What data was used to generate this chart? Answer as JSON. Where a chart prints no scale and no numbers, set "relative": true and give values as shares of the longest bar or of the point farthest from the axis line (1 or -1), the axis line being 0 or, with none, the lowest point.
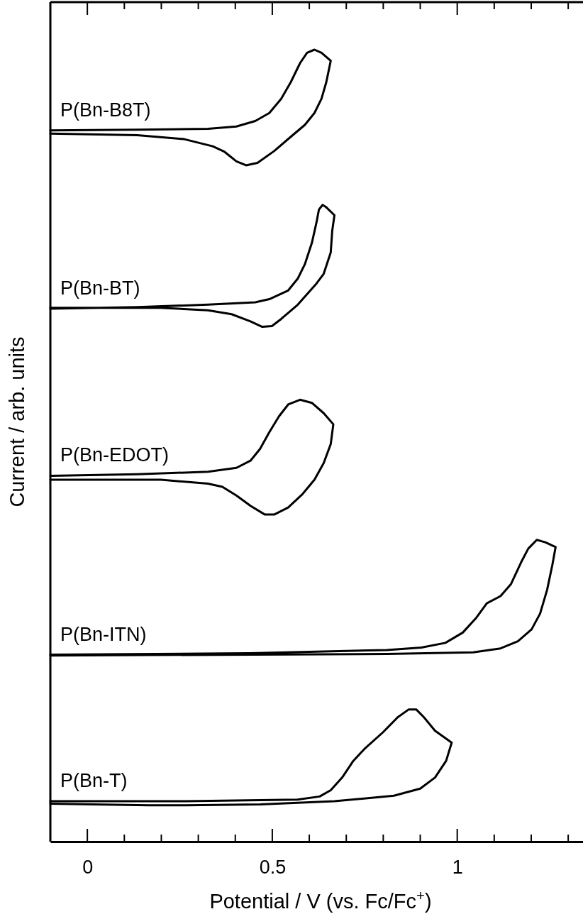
{
  "chart_data": {
    "type": "line",
    "relative": true,
    "xlabel": "Potential / V (vs. Fc/Fc$^{+}$)",
    "ylabel": "Current / arb. units",
    "xlim": [
      -0.1,
      1.34
    ],
    "xticks": [
      0,
      {
        "value": 0.1,
        "label": null
      },
      {
        "value": 0.2,
        "label": null
      },
      {
        "value": 0.3,
        "label": null
      },
      {
        "value": 0.4,
        "label": null
      },
      0.5,
      {
        "value": 0.6,
        "label": null
      },
      {
        "value": 0.7,
        "label": null
      },
      {
        "value": 0.8,
        "label": null
      },
      {
        "value": 0.9,
        "label": null
      },
      1,
      {
        "value": 1.1,
        "label": null
      },
      {
        "value": 1.2,
        "label": null
      },
      {
        "value": 1.3,
        "label": null
      }
    ],
    "series": [
      {
        "name": "P(Bn-B8T)",
        "color": "#000000",
        "x": [
          -0.1,
          0.135,
          0.326,
          0.403,
          0.454,
          0.492,
          0.524,
          0.55,
          0.575,
          0.594,
          0.614,
          0.633,
          0.658,
          0.646,
          0.633,
          0.614,
          0.588,
          0.55,
          0.505,
          0.46,
          0.429,
          0.403,
          0.371,
          0.339,
          0.262,
          0.135,
          -0.1
        ],
        "values": [
          0.898,
          0.899,
          0.9,
          0.903,
          0.91,
          0.92,
          0.938,
          0.959,
          0.983,
          0.996,
          1,
          0.996,
          0.986,
          0.959,
          0.938,
          0.92,
          0.905,
          0.89,
          0.872,
          0.857,
          0.854,
          0.859,
          0.871,
          0.878,
          0.887,
          0.892,
          0.894
        ]
      },
      {
        "name": "P(Bn-BT)",
        "color": "#000000",
        "x": [
          -0.1,
          0.135,
          0.326,
          0.454,
          0.492,
          0.543,
          0.569,
          0.588,
          0.607,
          0.62,
          0.626,
          0.636,
          0.646,
          0.668,
          0.662,
          0.658,
          0.639,
          0.62,
          0.569,
          0.524,
          0.499,
          0.473,
          0.441,
          0.39,
          0.326,
          0.199,
          -0.1
        ],
        "values": [
          0.673,
          0.675,
          0.678,
          0.681,
          0.685,
          0.696,
          0.711,
          0.729,
          0.756,
          0.783,
          0.798,
          0.804,
          0.801,
          0.791,
          0.771,
          0.744,
          0.717,
          0.705,
          0.678,
          0.66,
          0.651,
          0.65,
          0.657,
          0.666,
          0.671,
          0.674,
          0.674
        ]
      },
      {
        "name": "P(Bn-EDOT)",
        "color": "#000000",
        "x": [
          -0.1,
          0.135,
          0.326,
          0.403,
          0.441,
          0.467,
          0.492,
          0.518,
          0.543,
          0.575,
          0.607,
          0.639,
          0.665,
          0.658,
          0.639,
          0.614,
          0.582,
          0.543,
          0.505,
          0.48,
          0.441,
          0.403,
          0.365,
          0.326,
          0.199,
          -0.1
        ],
        "values": [
          0.462,
          0.464,
          0.467,
          0.472,
          0.481,
          0.496,
          0.517,
          0.537,
          0.552,
          0.558,
          0.554,
          0.541,
          0.527,
          0.502,
          0.478,
          0.457,
          0.439,
          0.422,
          0.413,
          0.413,
          0.424,
          0.437,
          0.448,
          0.452,
          0.457,
          0.457
        ]
      },
      {
        "name": "P(Bn-ITN)",
        "color": "#000000",
        "x": [
          -0.1,
          0.438,
          0.81,
          0.903,
          0.968,
          1.015,
          1.052,
          1.08,
          1.117,
          1.145,
          1.173,
          1.192,
          1.215,
          1.238,
          1.266,
          1.257,
          1.243,
          1.224,
          1.201,
          1.164,
          1.117,
          1.043,
          0.81,
          -0.1
        ],
        "values": [
          0.236,
          0.238,
          0.242,
          0.245,
          0.251,
          0.264,
          0.283,
          0.301,
          0.31,
          0.325,
          0.353,
          0.37,
          0.381,
          0.378,
          0.372,
          0.349,
          0.318,
          0.288,
          0.268,
          0.253,
          0.244,
          0.239,
          0.237,
          0.235
        ]
      },
      {
        "name": "P(Bn-T)",
        "color": "#000000",
        "x": [
          -0.1,
          0.267,
          0.568,
          0.628,
          0.658,
          0.689,
          0.719,
          0.749,
          0.799,
          0.839,
          0.869,
          0.889,
          0.91,
          0.94,
          0.985,
          0.97,
          0.94,
          0.9,
          0.829,
          0.668,
          0.468,
          0.267,
          0.166,
          0.016,
          -0.1
        ],
        "values": [
          0.051,
          0.051,
          0.053,
          0.057,
          0.065,
          0.081,
          0.102,
          0.117,
          0.138,
          0.157,
          0.167,
          0.167,
          0.157,
          0.14,
          0.125,
          0.102,
          0.081,
          0.067,
          0.058,
          0.051,
          0.047,
          0.046,
          0.046,
          0.047,
          0.048
        ]
      }
    ]
  }
}
